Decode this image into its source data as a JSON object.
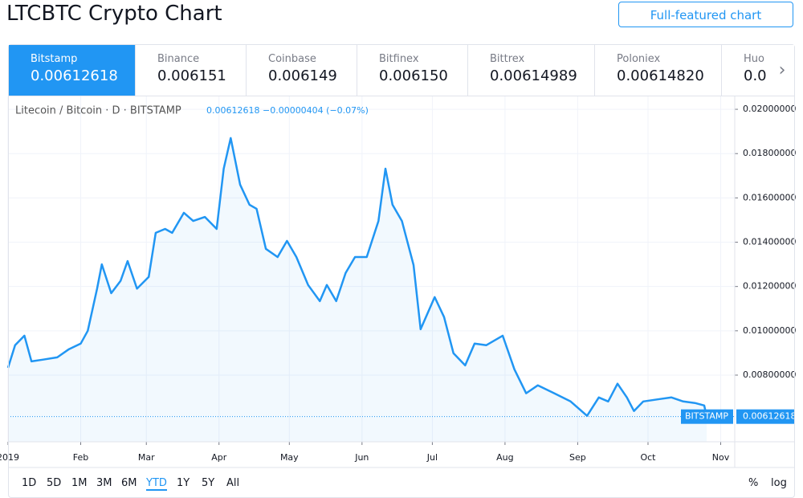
{
  "header": {
    "title": "LTCBTC Crypto Chart",
    "button": "Full-featured chart"
  },
  "tabs": [
    {
      "name": "Bitstamp",
      "price": "0.00612618"
    },
    {
      "name": "Binance",
      "price": "0.006151"
    },
    {
      "name": "Coinbase",
      "price": "0.006149"
    },
    {
      "name": "Bitfinex",
      "price": "0.006150"
    },
    {
      "name": "Bittrex",
      "price": "0.00614989"
    },
    {
      "name": "Poloniex",
      "price": "0.00614820"
    },
    {
      "name": "Huo",
      "price": "0.0"
    }
  ],
  "chart_data": {
    "type": "line",
    "title": "Litecoin / Bitcoin · D · BITSTAMP",
    "subtitle": "0.00612618 −0.00000404 (−0.07%)",
    "x": [
      0,
      3,
      7,
      10,
      15,
      21,
      26,
      31,
      34,
      38,
      40,
      44,
      48,
      51,
      55,
      60,
      63,
      67,
      70,
      75,
      79,
      84,
      89,
      92,
      95,
      99,
      103,
      106,
      110,
      115,
      119,
      123,
      128,
      133,
      136,
      140,
      144,
      148,
      153,
      158,
      161,
      164,
      168,
      173,
      176,
      182,
      186,
      190,
      195,
      199,
      204,
      211,
      216,
      221,
      226,
      233,
      240,
      247,
      252,
      256,
      260,
      264,
      267,
      271,
      278,
      283,
      288,
      293,
      297,
      298
    ],
    "series": [
      {
        "name": "BITSTAMP",
        "color": "#2196f3",
        "values": [
          0.00833,
          0.00935,
          0.00978,
          0.00862,
          0.0087,
          0.0088,
          0.00917,
          0.00942,
          0.01,
          0.0119,
          0.013,
          0.0117,
          0.01225,
          0.01315,
          0.0119,
          0.01243,
          0.01442,
          0.0146,
          0.01442,
          0.01533,
          0.01496,
          0.01514,
          0.0146,
          0.01732,
          0.0187,
          0.0166,
          0.01569,
          0.01551,
          0.0137,
          0.01333,
          0.01406,
          0.01333,
          0.01207,
          0.01134,
          0.01207,
          0.01134,
          0.01261,
          0.01333,
          0.01333,
          0.01496,
          0.01732,
          0.01569,
          0.01496,
          0.01297,
          0.01007,
          0.01152,
          0.01062,
          0.00899,
          0.00844,
          0.00942,
          0.00935,
          0.00978,
          0.00826,
          0.00718,
          0.00754,
          0.00718,
          0.00681,
          0.00616,
          0.00699,
          0.00681,
          0.00761,
          0.00699,
          0.00638,
          0.00681,
          0.00692,
          0.00699,
          0.00681,
          0.00674,
          0.00663,
          0.00612618
        ]
      }
    ],
    "last_price": 0.00612618,
    "xlim": [
      0,
      310
    ],
    "xticks": [
      {
        "value": 0,
        "label": "2019"
      },
      {
        "value": 31,
        "label": "Feb"
      },
      {
        "value": 59,
        "label": "Mar"
      },
      {
        "value": 90,
        "label": "Apr"
      },
      {
        "value": 120,
        "label": "May"
      },
      {
        "value": 151,
        "label": "Jun"
      },
      {
        "value": 181,
        "label": "Jul"
      },
      {
        "value": 212,
        "label": "Aug"
      },
      {
        "value": 243,
        "label": "Sep"
      },
      {
        "value": 273,
        "label": "Oct"
      },
      {
        "value": 304,
        "label": "Nov"
      }
    ],
    "ylim": [
      0.00499,
      0.02051
    ],
    "yticks": [
      {
        "value": 0.008,
        "label": "0.00800000"
      },
      {
        "value": 0.01,
        "label": "0.01000000"
      },
      {
        "value": 0.012,
        "label": "0.01200000"
      },
      {
        "value": 0.014,
        "label": "0.01400000"
      },
      {
        "value": 0.016,
        "label": "0.01600000"
      },
      {
        "value": 0.018,
        "label": "0.01800000"
      },
      {
        "value": 0.02,
        "label": "0.02000000"
      }
    ],
    "grid": true
  },
  "toolbar": {
    "ranges": [
      "1D",
      "5D",
      "1M",
      "3M",
      "6M",
      "YTD",
      "1Y",
      "5Y",
      "All"
    ],
    "active": "YTD",
    "options": [
      "%",
      "log"
    ]
  }
}
